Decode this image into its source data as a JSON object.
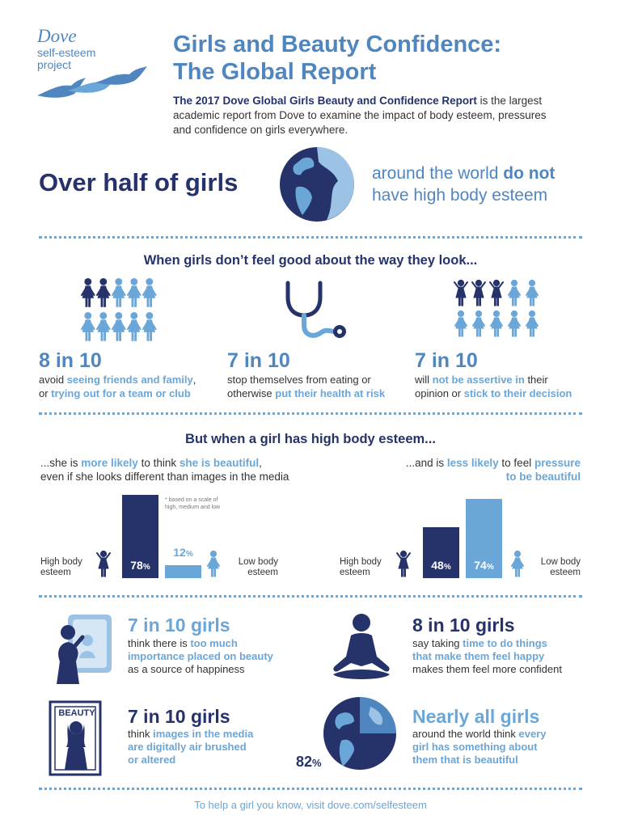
{
  "logo": {
    "brand": "Dove",
    "line1": "self-esteem",
    "line2": "project"
  },
  "title": {
    "line1": "Girls and Beauty Confidence:",
    "line2": "The Global Report"
  },
  "intro": {
    "bold": "The 2017 Dove Global Girls Beauty and Confidence Report",
    "rest": " is the largest academic report from Dove to examine the impact of body esteem, pressures and confidence on girls everywhere."
  },
  "headline": {
    "left": "Over half of girls",
    "right_a": "around the world ",
    "right_b": "do not",
    "right_c": "have high body esteem"
  },
  "section1": {
    "heading": "When girls don’t feel good about the way they look...",
    "stats": [
      {
        "num": "8 in 10",
        "t1": "avoid ",
        "h1": "seeing friends and family",
        "t2": ",",
        "t3": "or ",
        "h2": "trying out for a team or club"
      },
      {
        "num": "7 in 10",
        "t1": "stop themselves from eating or",
        "t3": "otherwise ",
        "h2": "put their health at risk"
      },
      {
        "num": "7 in 10",
        "t1": "will ",
        "h1": "not be assertive in",
        "t2": " their",
        "t3": "opinion or ",
        "h2": "stick to their decision"
      }
    ]
  },
  "section2": {
    "heading": "But when a girl has high body esteem...",
    "left_caption": {
      "a": "...she is ",
      "b": "more likely",
      "c": " to think ",
      "d": "she is beautiful",
      "e": ",",
      "f": "even if she looks different than images in the media"
    },
    "right_caption": {
      "a": "...and is ",
      "b": "less likely",
      "c": " to feel ",
      "d": "pressure",
      "e": "to be beautiful"
    },
    "note": "* based on a scale of high, medium and low",
    "high_label": "High body esteem",
    "low_label": "Low body esteem"
  },
  "chart_data": [
    {
      "type": "bar",
      "categories": [
        "High body esteem",
        "Low body esteem"
      ],
      "values": [
        78,
        12
      ],
      "unit": "%",
      "colors": [
        "#26336b",
        "#6aa6d8"
      ]
    },
    {
      "type": "bar",
      "categories": [
        "High body esteem",
        "Low body esteem"
      ],
      "values": [
        48,
        74
      ],
      "unit": "%",
      "colors": [
        "#26336b",
        "#6aa6d8"
      ]
    }
  ],
  "section3": {
    "items": [
      {
        "head": "7 in 10 girls",
        "l1": "think there is ",
        "h1": "too much",
        "h2": "importance placed on beauty",
        "l3": "as a source of happiness"
      },
      {
        "head": "8 in 10 girls",
        "l1": "say taking ",
        "h1": "time to do things",
        "h2": "that make them feel happy",
        "l3": "makes them feel more confident"
      },
      {
        "head": "7 in 10 girls",
        "l1": "think ",
        "h1": "images in the media",
        "h2": "are digitally air brushed",
        "h3": "or altered"
      },
      {
        "head": "Nearly all girls",
        "l1": "around the world think ",
        "h1": "every",
        "h2": "girl has something about",
        "h3": "them that is beautiful"
      }
    ],
    "magazine_label": "BEAUTY",
    "globe_pct": "82",
    "globe_pct_unit": "%"
  },
  "footer": "To help a girl you know, visit dove.com/selfesteem",
  "colors": {
    "navy": "#26336b",
    "blue": "#4f86c0",
    "light_blue": "#6aa6d8"
  }
}
